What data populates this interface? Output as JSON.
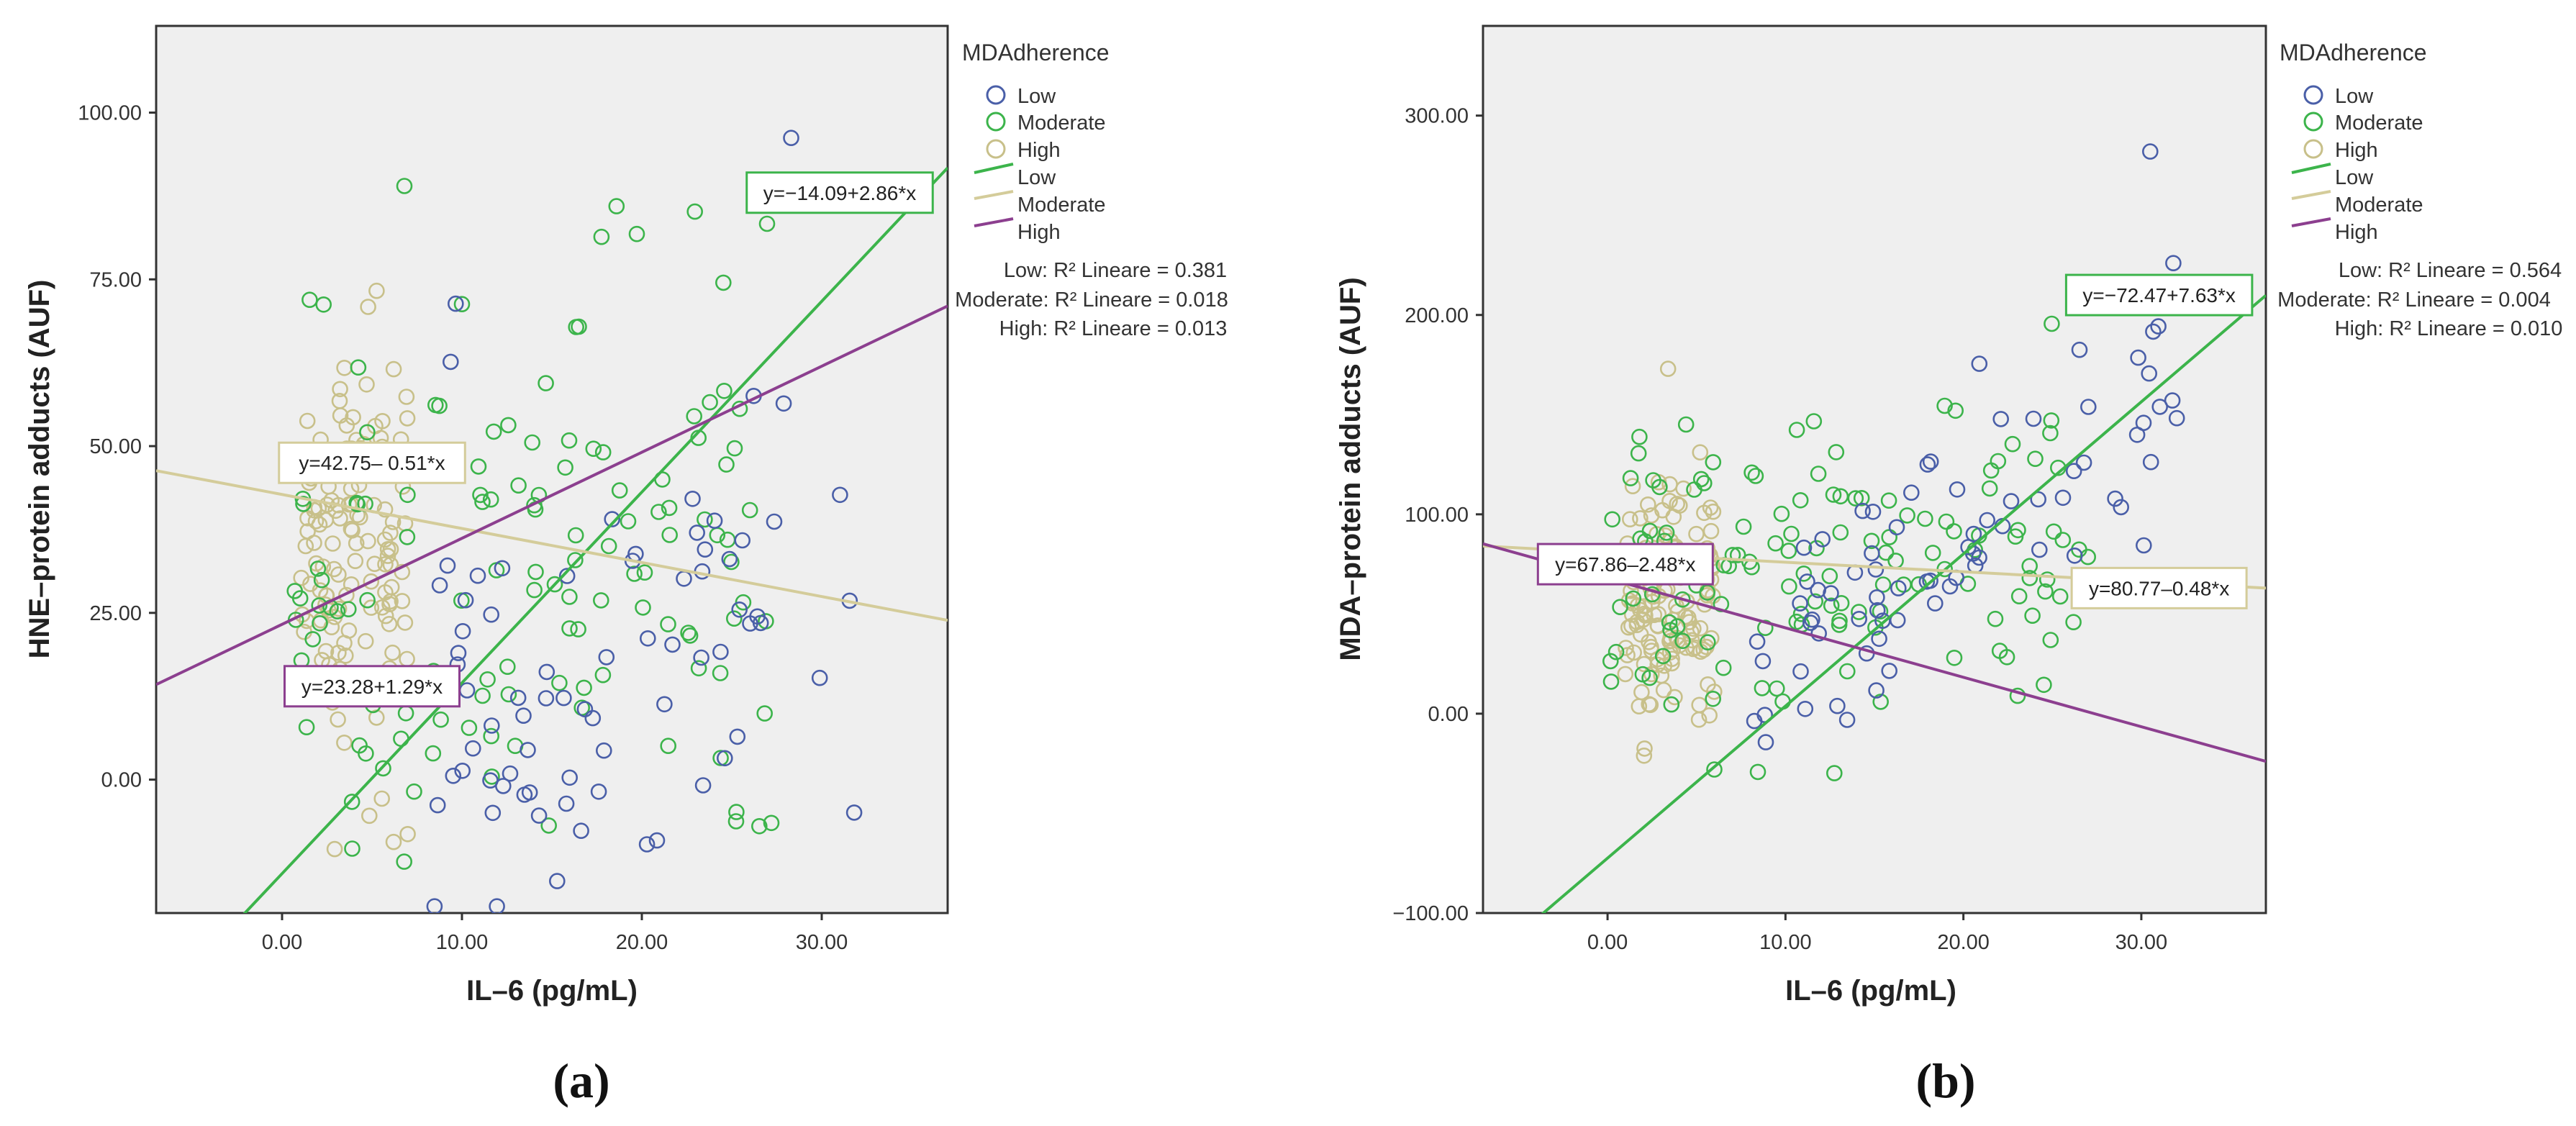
{
  "colors": {
    "low": "#4a5fa8",
    "moderate": "#3cb44b",
    "high": "#c8c08a",
    "high_line": "#8c3f8f",
    "moderate_line": "#d4cc9a",
    "plot_bg": "#efefef",
    "axis": "#333333",
    "label_box_low": "#3cb44b",
    "label_box_moderate": "#d4cc9a",
    "label_box_high": "#8c3f8f"
  },
  "chart_data": [
    {
      "type": "scatter",
      "panel": "(a)",
      "xlabel": "IL–6 (pg/mL)",
      "ylabel": "HNE–protein adducts (AUF)",
      "xlim": [
        -7,
        37
      ],
      "ylim": [
        -20,
        113
      ],
      "xticks": [
        0,
        10,
        20,
        30
      ],
      "xtick_labels": [
        "0.00",
        "10.00",
        "20.00",
        "30.00"
      ],
      "yticks": [
        0,
        25,
        50,
        75,
        100
      ],
      "ytick_labels": [
        "0.00",
        "25.00",
        "50.00",
        "75.00",
        "100.00"
      ],
      "legend": {
        "title": "MDAdherence",
        "markers": [
          "Low",
          "Moderate",
          "High"
        ],
        "lines": [
          "Low",
          "Moderate",
          "High"
        ],
        "r2": [
          "Low: R² Lineare = 0.381",
          "Moderate: R² Lineare = 0.018",
          "High: R² Lineare = 0.013"
        ]
      },
      "fit_lines": [
        {
          "group": "Low",
          "intercept": -14.09,
          "slope": 2.86,
          "label": "y=−14.09+2.86*x",
          "label_x": 31,
          "label_y": 88
        },
        {
          "group": "Moderate",
          "intercept": 42.75,
          "slope": -0.51,
          "label": "y=42.75– 0.51*x",
          "label_x": 5,
          "label_y": 47.5
        },
        {
          "group": "High",
          "intercept": 23.28,
          "slope": 1.29,
          "label": "y=23.28+1.29*x",
          "label_x": 5,
          "label_y": 14
        }
      ],
      "series": [
        {
          "name": "Low",
          "seed": 11,
          "n": 75,
          "x_range": [
            8,
            32
          ],
          "y_mean": [
            3,
            0.82
          ],
          "noise": 17
        },
        {
          "name": "Moderate",
          "seed": 23,
          "n": 135,
          "x_range": [
            0,
            27
          ],
          "y_mean": [
            30,
            0.3
          ],
          "noise": 20
        },
        {
          "name": "High",
          "seed": 37,
          "n": 140,
          "x_range": [
            1,
            7
          ],
          "y_mean": [
            32,
            0
          ],
          "noise": 17
        }
      ],
      "extra_points": [
        {
          "group": "Low",
          "x": 28.3,
          "y": 96.2
        },
        {
          "group": "Moderate",
          "x": 6.8,
          "y": 89
        },
        {
          "group": "Moderate",
          "x": 27.2,
          "y": -6.5
        }
      ]
    },
    {
      "type": "scatter",
      "panel": "(b)",
      "xlabel": "IL–6 (pg/mL)",
      "ylabel": "MDA–protein adducts (AUF)",
      "xlim": [
        -7,
        37
      ],
      "ylim": [
        -100,
        345
      ],
      "xticks": [
        0,
        10,
        20,
        30
      ],
      "xtick_labels": [
        "0.00",
        "10.00",
        "20.00",
        "30.00"
      ],
      "yticks": [
        -100,
        0,
        100,
        200,
        300
      ],
      "ytick_labels": [
        "−100.00",
        "0.00",
        "100.00",
        "200.00",
        "300.00"
      ],
      "legend": {
        "title": "MDAdherence",
        "markers": [
          "Low",
          "Moderate",
          "High"
        ],
        "lines": [
          "Low",
          "Moderate",
          "High"
        ],
        "r2": [
          "Low: R² Lineare = 0.564",
          "Moderate: R² Lineare = 0.004",
          "High: R² Lineare = 0.010"
        ]
      },
      "fit_lines": [
        {
          "group": "Low",
          "intercept": -72.47,
          "slope": 7.63,
          "label": "y=−72.47+7.63*x",
          "label_x": 31,
          "label_y": 210
        },
        {
          "group": "Moderate",
          "intercept": 80.77,
          "slope": -0.48,
          "label": "y=80.77–0.48*x",
          "label_x": 31,
          "label_y": 63
        },
        {
          "group": "High",
          "intercept": 67.86,
          "slope": -2.48,
          "label": "y=67.86–2.48*x",
          "label_x": 1,
          "label_y": 75
        }
      ],
      "series": [
        {
          "name": "Low",
          "seed": 51,
          "n": 75,
          "x_range": [
            8,
            32
          ],
          "y_mean": [
            -45,
            6.6
          ],
          "noise": 28
        },
        {
          "name": "Moderate",
          "seed": 63,
          "n": 140,
          "x_range": [
            0,
            27
          ],
          "y_mean": [
            75,
            0
          ],
          "noise": 40
        },
        {
          "name": "High",
          "seed": 77,
          "n": 140,
          "x_range": [
            1,
            6
          ],
          "y_mean": [
            60,
            0
          ],
          "noise": 35
        }
      ],
      "extra_points": [
        {
          "group": "Low",
          "x": 30.5,
          "y": 282
        },
        {
          "group": "Low",
          "x": 31.8,
          "y": 226
        },
        {
          "group": "Moderate",
          "x": 6,
          "y": -28
        },
        {
          "group": "High",
          "x": 3.4,
          "y": 173
        }
      ]
    }
  ]
}
